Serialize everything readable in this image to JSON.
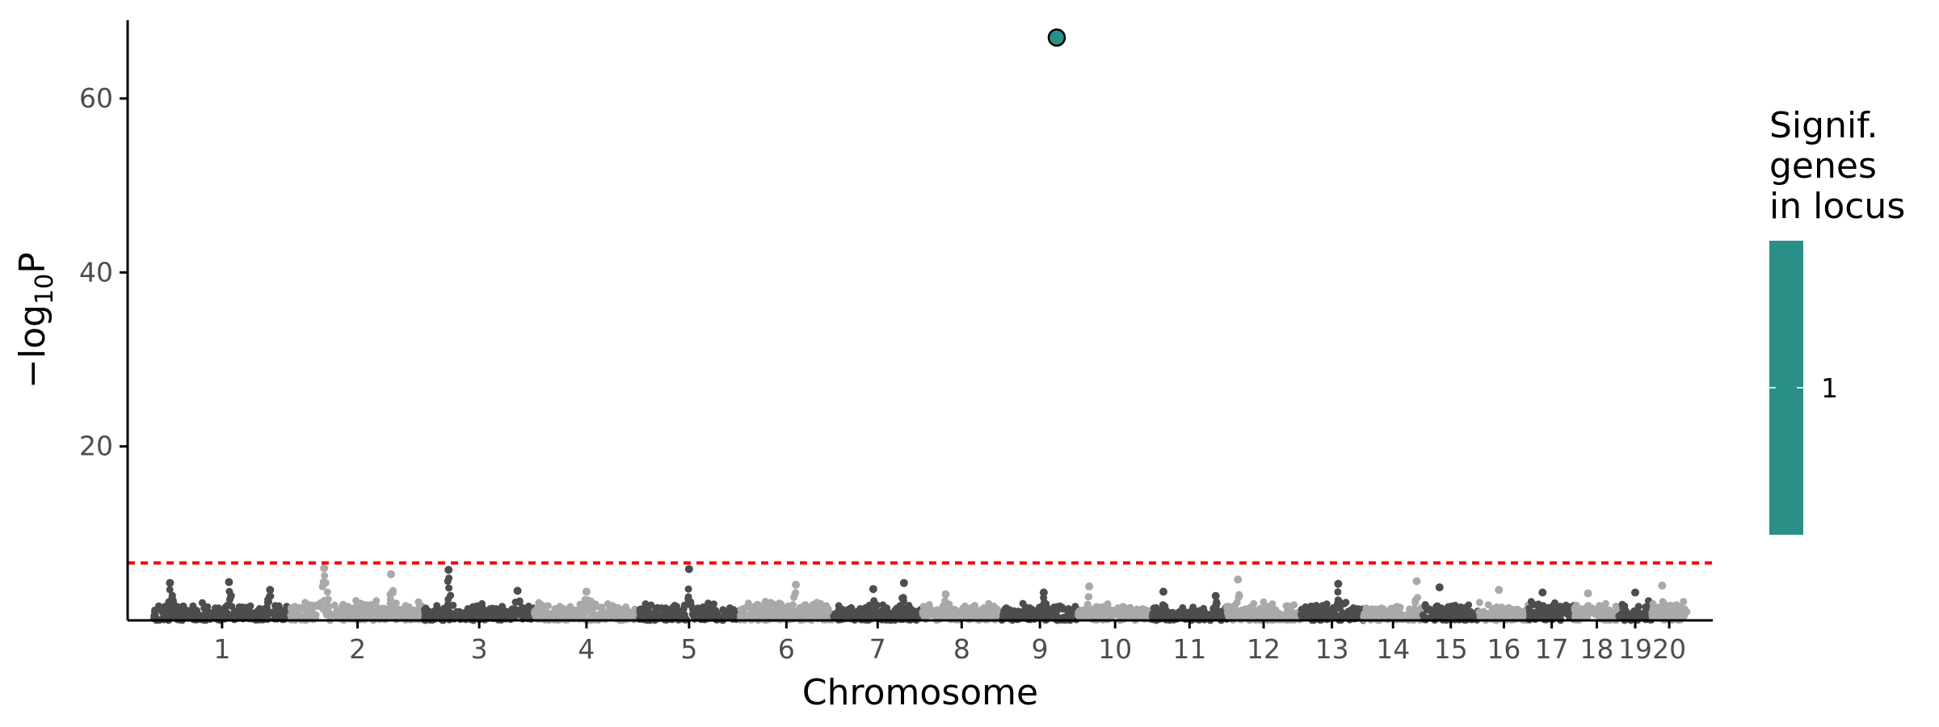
{
  "chart_data": {
    "type": "scatter",
    "xlabel": "Chromosome",
    "ylabel_main": "−log",
    "ylabel_sub": "10",
    "ylabel_end": "P",
    "ylim": [
      0,
      69
    ],
    "yticks": [
      20,
      40,
      60
    ],
    "threshold": 6.6,
    "threshold_color": "#ff0000",
    "colors": {
      "dark": "#4d4d4d",
      "light": "#a9a9a9",
      "highlight": "#2a9087"
    },
    "chromosomes": [
      {
        "label": "1",
        "length": 248,
        "color": "dark",
        "base": 2.1,
        "peaks": [
          [
            0.12,
            4.3
          ],
          [
            0.55,
            4.4
          ],
          [
            0.85,
            3.5
          ]
        ]
      },
      {
        "label": "2",
        "length": 242,
        "color": "light",
        "base": 2.4,
        "peaks": [
          [
            0.25,
            6.0
          ],
          [
            0.75,
            5.3
          ]
        ]
      },
      {
        "label": "3",
        "length": 198,
        "color": "dark",
        "base": 2.0,
        "peaks": [
          [
            0.22,
            5.8
          ],
          [
            0.85,
            3.4
          ]
        ]
      },
      {
        "label": "4",
        "length": 190,
        "color": "light",
        "base": 2.2,
        "peaks": [
          [
            0.5,
            3.3
          ]
        ]
      },
      {
        "label": "5",
        "length": 181,
        "color": "dark",
        "base": 2.0,
        "peaks": [
          [
            0.5,
            5.9
          ]
        ]
      },
      {
        "label": "6",
        "length": 171,
        "color": "light",
        "base": 2.3,
        "peaks": [
          [
            0.6,
            4.1
          ]
        ]
      },
      {
        "label": "7",
        "length": 159,
        "color": "dark",
        "base": 2.1,
        "peaks": [
          [
            0.45,
            3.6
          ],
          [
            0.8,
            4.3
          ]
        ]
      },
      {
        "label": "8",
        "length": 145,
        "color": "light",
        "base": 2.0,
        "peaks": [
          [
            0.3,
            3.0
          ]
        ]
      },
      {
        "label": "9",
        "length": 138,
        "color": "dark",
        "base": 2.0,
        "peaks": [
          [
            0.55,
            3.2
          ]
        ]
      },
      {
        "label": "10",
        "length": 134,
        "color": "light",
        "base": 2.1,
        "peaks": [
          [
            0.15,
            3.9
          ]
        ]
      },
      {
        "label": "11",
        "length": 135,
        "color": "dark",
        "base": 1.6,
        "peaks": [
          [
            0.15,
            3.3
          ],
          [
            0.85,
            2.8
          ]
        ]
      },
      {
        "label": "12",
        "length": 133,
        "color": "light",
        "base": 2.2,
        "peaks": [
          [
            0.15,
            4.7
          ]
        ]
      },
      {
        "label": "13",
        "length": 114,
        "color": "dark",
        "base": 2.2,
        "peaks": [
          [
            0.6,
            4.2
          ]
        ]
      },
      {
        "label": "14",
        "length": 107,
        "color": "light",
        "base": 2.0,
        "peaks": [
          [
            0.9,
            4.5
          ]
        ]
      },
      {
        "label": "15",
        "length": 102,
        "color": "dark",
        "base": 2.0,
        "peaks": [
          [
            0.3,
            3.8
          ]
        ]
      },
      {
        "label": "16",
        "length": 90,
        "color": "light",
        "base": 2.1,
        "peaks": [
          [
            0.4,
            3.5
          ]
        ]
      },
      {
        "label": "17",
        "length": 83,
        "color": "dark",
        "base": 2.3,
        "peaks": [
          [
            0.3,
            3.2
          ]
        ]
      },
      {
        "label": "18",
        "length": 80,
        "color": "light",
        "base": 2.1,
        "peaks": [
          [
            0.3,
            3.1
          ]
        ]
      },
      {
        "label": "19",
        "length": 59,
        "color": "dark",
        "base": 2.3,
        "peaks": [
          [
            0.5,
            3.2
          ]
        ]
      },
      {
        "label": "20",
        "length": 64,
        "color": "light",
        "base": 2.4,
        "peaks": [
          [
            0.3,
            4.0
          ]
        ]
      }
    ],
    "highlight_points": [
      {
        "chromosome": "9",
        "position": 0.72,
        "y": 67,
        "value": 1
      }
    ],
    "legend": {
      "title_lines": [
        "Signif.",
        "genes",
        "in locus"
      ],
      "labels": [
        "1"
      ],
      "color": "#2a9087"
    }
  }
}
